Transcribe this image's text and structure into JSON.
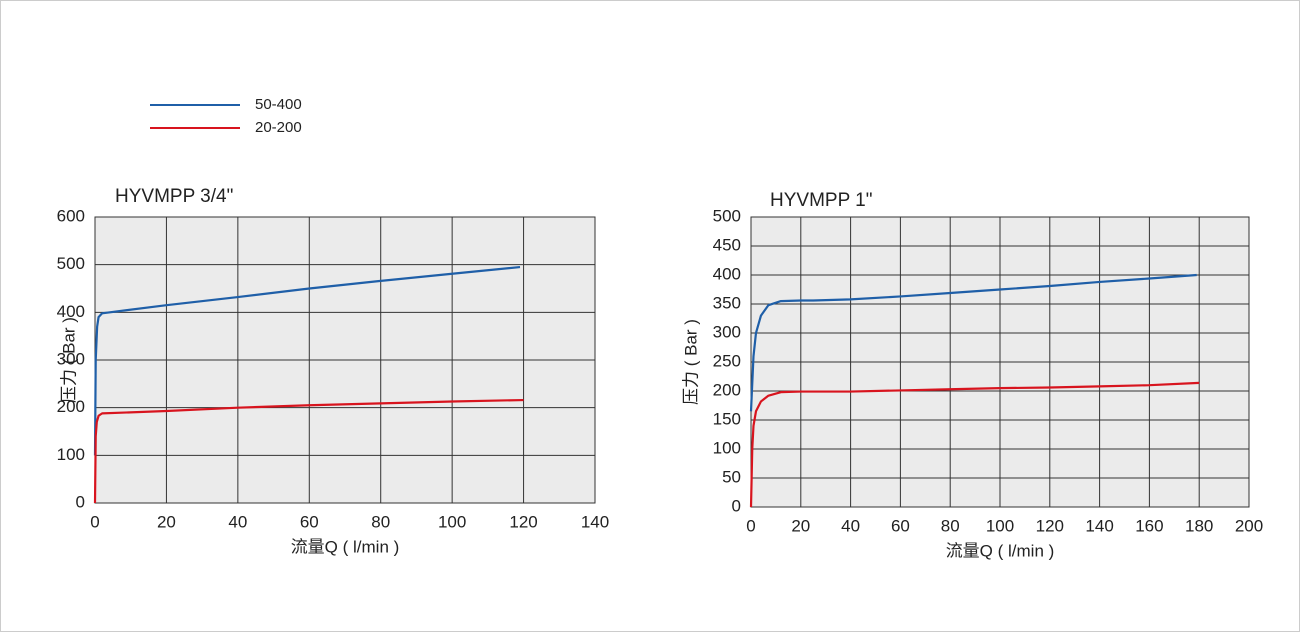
{
  "legend": [
    {
      "name": "50-400",
      "color": "#1f5fa8"
    },
    {
      "name": "20-200",
      "color": "#d8141e"
    }
  ],
  "chart_data": [
    {
      "type": "line",
      "title": "HYVMPP 3/4\"",
      "x_label": "流量Q ( l/min )",
      "y_label": "压力 ( Bar )",
      "xlim": [
        0,
        140
      ],
      "xticks": [
        0,
        20,
        40,
        60,
        80,
        100,
        120,
        140
      ],
      "ylim": [
        0,
        600
      ],
      "yticks": [
        0,
        100,
        200,
        300,
        400,
        500,
        600
      ],
      "grid": true,
      "series": [
        {
          "color": "#1f5fa8",
          "x": [
            0,
            0.2,
            0.6,
            1,
            2,
            20,
            40,
            60,
            80,
            100,
            119
          ],
          "values": [
            100,
            300,
            370,
            390,
            398,
            415,
            432,
            450,
            466,
            481,
            495
          ]
        },
        {
          "color": "#d8141e",
          "x": [
            0,
            0.2,
            0.5,
            1,
            2,
            20,
            40,
            60,
            80,
            100,
            120
          ],
          "values": [
            0,
            140,
            170,
            183,
            188,
            193,
            200,
            205,
            209,
            213,
            216
          ]
        }
      ]
    },
    {
      "type": "line",
      "title": "HYVMPP 1\"",
      "x_label": "流量Q ( l/min )",
      "y_label": "压力 ( Bar )",
      "xlim": [
        0,
        200
      ],
      "xticks": [
        0,
        20,
        40,
        60,
        80,
        100,
        120,
        140,
        160,
        180,
        200
      ],
      "ylim": [
        0,
        500
      ],
      "yticks": [
        0,
        50,
        100,
        150,
        200,
        250,
        300,
        350,
        400,
        450,
        500
      ],
      "grid": true,
      "series": [
        {
          "color": "#1f5fa8",
          "x": [
            0,
            1,
            2,
            4,
            7,
            12,
            20,
            25,
            40,
            60,
            80,
            100,
            120,
            140,
            160,
            179
          ],
          "values": [
            165,
            260,
            300,
            330,
            348,
            355,
            356,
            356,
            358,
            363,
            369,
            375,
            381,
            388,
            394,
            400
          ]
        },
        {
          "color": "#d8141e",
          "x": [
            0,
            0.5,
            1,
            2,
            4,
            7,
            12,
            20,
            40,
            60,
            80,
            100,
            120,
            140,
            160,
            180
          ],
          "values": [
            0,
            100,
            140,
            165,
            182,
            192,
            198,
            199,
            199,
            201,
            203,
            205,
            206,
            208,
            210,
            214
          ]
        }
      ]
    }
  ]
}
